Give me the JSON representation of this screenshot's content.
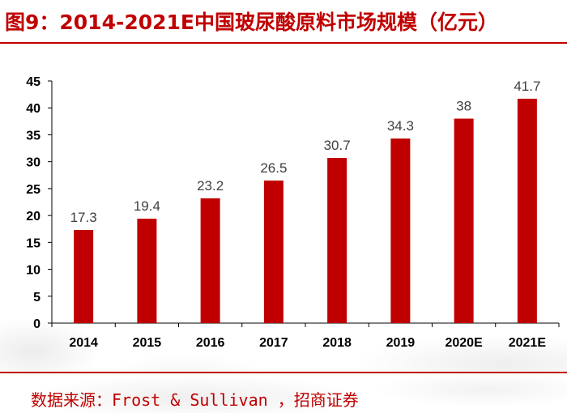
{
  "title": "图9：2014-2021E中国玻尿酸原料市场规模（亿元）",
  "source": "数据来源：Frost & Sullivan ，招商证券",
  "colors": {
    "accent": "#c00000",
    "bar": "#c00000",
    "axis": "#000000"
  },
  "chart_data": {
    "type": "bar",
    "title": "图9：2014-2021E中国玻尿酸原料市场规模（亿元）",
    "categories": [
      "2014",
      "2015",
      "2016",
      "2017",
      "2018",
      "2019",
      "2020E",
      "2021E"
    ],
    "values": [
      17.3,
      19.4,
      23.2,
      26.5,
      30.7,
      34.3,
      38,
      41.7
    ],
    "data_labels": [
      "17.3",
      "19.4",
      "23.2",
      "26.5",
      "30.7",
      "34.3",
      "38",
      "41.7"
    ],
    "y_ticks": [
      "0",
      "5",
      "10",
      "15",
      "20",
      "25",
      "30",
      "35",
      "40",
      "45"
    ],
    "ylim": [
      0,
      45
    ],
    "xlabel": "",
    "ylabel": "",
    "grid": false,
    "legend": "none"
  }
}
